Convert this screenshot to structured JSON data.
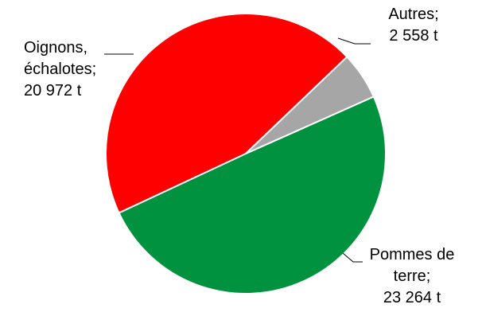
{
  "chart_data": {
    "type": "pie",
    "title": "",
    "slices": [
      {
        "name": "Pommes de terre",
        "value": 23264,
        "color": "#00923f",
        "label_lines": [
          "Pommes de",
          "terre;",
          "23 264 t"
        ]
      },
      {
        "name": "Oignons, échalotes",
        "value": 20972,
        "color": "#ff0000",
        "label_lines": [
          "Oignons,",
          "échalotes;",
          "20 972 t"
        ]
      },
      {
        "name": "Autres",
        "value": 2558,
        "color": "#a6a6a6",
        "label_lines": [
          "Autres;",
          "2 558 t"
        ]
      }
    ]
  }
}
